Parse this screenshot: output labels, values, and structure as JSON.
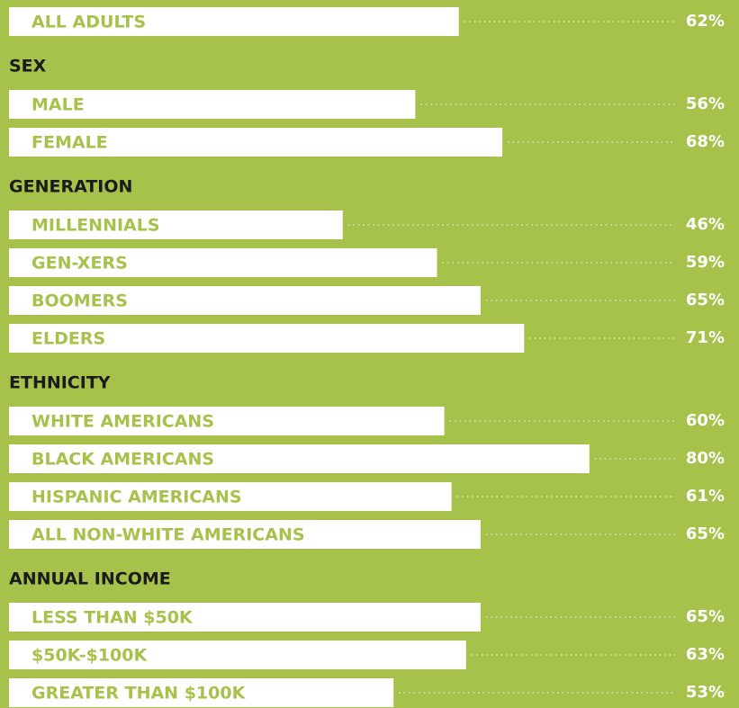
{
  "chart_data": {
    "type": "bar",
    "color": "#ffffff",
    "groups": [
      {
        "categories": [
          "ALL ADULTS"
        ],
        "values": [
          62
        ],
        "value_labels": [
          "62%"
        ]
      },
      {
        "name": "SEX",
        "categories": [
          "MALE",
          "FEMALE"
        ],
        "values": [
          56,
          68
        ],
        "value_labels": [
          "56%",
          "68%"
        ]
      },
      {
        "name": "GENERATION",
        "categories": [
          "MILLENNIALS",
          "GEN-XERS",
          "BOOMERS",
          "ELDERS"
        ],
        "values": [
          46,
          59,
          65,
          71
        ],
        "value_labels": [
          "46%",
          "59%",
          "65%",
          "71%"
        ]
      },
      {
        "name": "ETHNICITY",
        "categories": [
          "WHITE AMERICANS",
          "BLACK AMERICANS",
          "HISPANIC AMERICANS",
          "ALL NON-WHITE AMERICANS"
        ],
        "values": [
          60,
          80,
          61,
          65
        ],
        "value_labels": [
          "60%",
          "80%",
          "61%",
          "65%"
        ]
      },
      {
        "name": "ANNUAL INCOME",
        "categories": [
          "LESS THAN $50K",
          "$50K-$100K",
          "GREATER THAN $100K"
        ],
        "values": [
          65,
          63,
          53
        ],
        "value_labels": [
          "65%",
          "63%",
          "53%"
        ]
      }
    ]
  }
}
